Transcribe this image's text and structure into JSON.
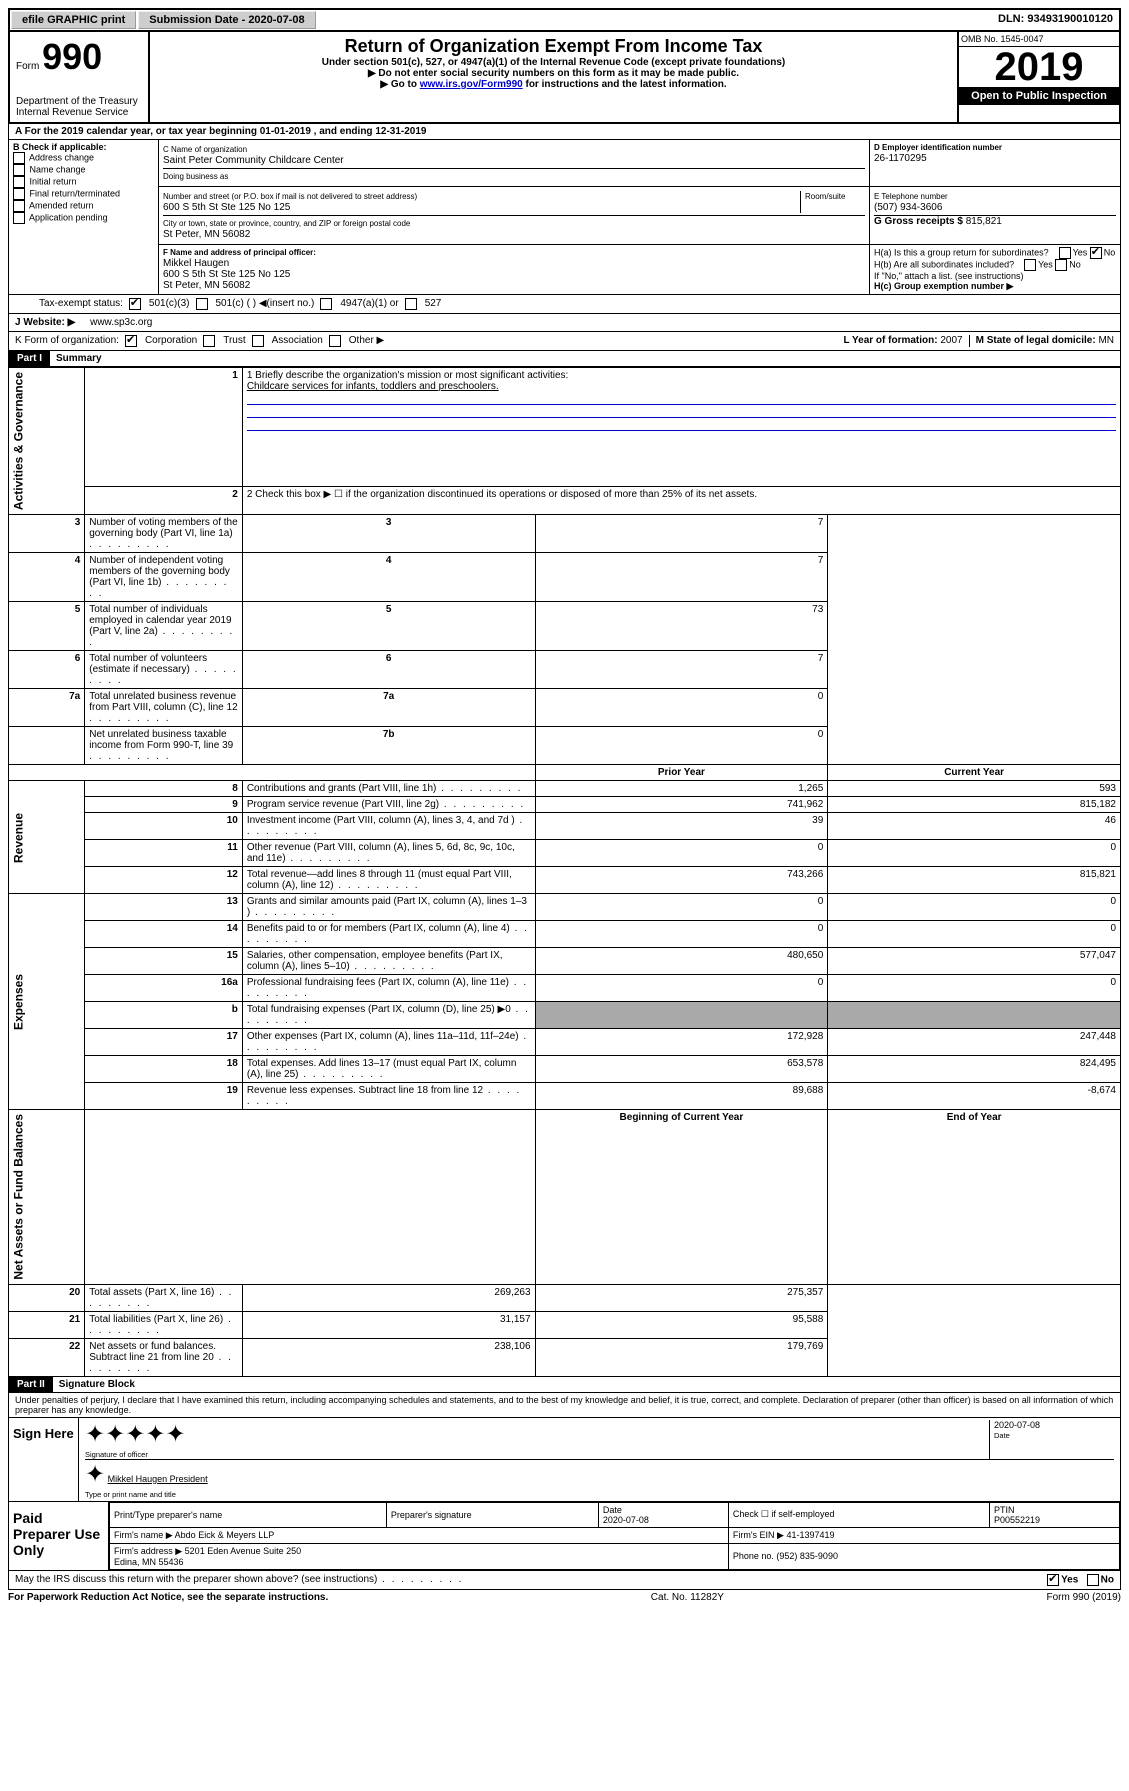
{
  "topbar": {
    "efile": "efile GRAPHIC print",
    "submission": "Submission Date - 2020-07-08",
    "dln": "DLN: 93493190010120"
  },
  "header": {
    "form_prefix": "Form",
    "form_number": "990",
    "dept": "Department of the Treasury\nInternal Revenue Service",
    "title": "Return of Organization Exempt From Income Tax",
    "subtitle": "Under section 501(c), 527, or 4947(a)(1) of the Internal Revenue Code (except private foundations)",
    "note1": "▶ Do not enter social security numbers on this form as it may be made public.",
    "note2_pre": "▶ Go to ",
    "note2_link": "www.irs.gov/Form990",
    "note2_post": " for instructions and the latest information.",
    "omb": "OMB No. 1545-0047",
    "year": "2019",
    "open": "Open to Public Inspection"
  },
  "rowA": "A For the 2019 calendar year, or tax year beginning 01-01-2019  , and ending 12-31-2019",
  "sectionB": {
    "label": "B Check if applicable:",
    "items": [
      "Address change",
      "Name change",
      "Initial return",
      "Final return/terminated",
      "Amended return",
      "Application pending"
    ]
  },
  "sectionC": {
    "name_lbl": "C Name of organization",
    "name": "Saint Peter Community Childcare Center",
    "dba_lbl": "Doing business as",
    "addr_lbl": "Number and street (or P.O. box if mail is not delivered to street address)",
    "room_lbl": "Room/suite",
    "addr": "600 S 5th St Ste 125 No 125",
    "city_lbl": "City or town, state or province, country, and ZIP or foreign postal code",
    "city": "St Peter, MN  56082"
  },
  "sectionD": {
    "ein_lbl": "D Employer identification number",
    "ein": "26-1170295",
    "tel_lbl": "E Telephone number",
    "tel": "(507) 934-3606",
    "gross_lbl": "G Gross receipts $",
    "gross": "815,821"
  },
  "sectionF": {
    "lbl": "F  Name and address of principal officer:",
    "name": "Mikkel Haugen",
    "addr1": "600 S 5th St Ste 125 No 125",
    "addr2": "St Peter, MN  56082"
  },
  "sectionH": {
    "a": "H(a)  Is this a group return for subordinates?",
    "b": "H(b)  Are all subordinates included?",
    "b_note": "If \"No,\" attach a list. (see instructions)",
    "c": "H(c)  Group exemption number ▶"
  },
  "tax": {
    "lbl": "Tax-exempt status:",
    "o1": "501(c)(3)",
    "o2": "501(c) (  ) ◀(insert no.)",
    "o3": "4947(a)(1) or",
    "o4": "527"
  },
  "rowJ": {
    "lbl": "J  Website: ▶",
    "val": "www.sp3c.org"
  },
  "rowK": {
    "lbl": "K Form of organization:",
    "opts": [
      "Corporation",
      "Trust",
      "Association",
      "Other ▶"
    ],
    "L_lbl": "L Year of formation:",
    "L_val": "2007",
    "M_lbl": "M State of legal domicile:",
    "M_val": "MN"
  },
  "partI": {
    "hdr": "Part I",
    "title": "Summary",
    "l1_lbl": "1  Briefly describe the organization's mission or most significant activities:",
    "l1_val": "Childcare services for infants, toddlers and preschoolers.",
    "l2": "2    Check this box ▶ ☐  if the organization discontinued its operations or disposed of more than 25% of its net assets.",
    "lines_single": [
      {
        "n": "3",
        "t": "Number of voting members of the governing body (Part VI, line 1a)",
        "ln": "3",
        "v": "7"
      },
      {
        "n": "4",
        "t": "Number of independent voting members of the governing body (Part VI, line 1b)",
        "ln": "4",
        "v": "7"
      },
      {
        "n": "5",
        "t": "Total number of individuals employed in calendar year 2019 (Part V, line 2a)",
        "ln": "5",
        "v": "73"
      },
      {
        "n": "6",
        "t": "Total number of volunteers (estimate if necessary)",
        "ln": "6",
        "v": "7"
      },
      {
        "n": "7a",
        "t": "Total unrelated business revenue from Part VIII, column (C), line 12",
        "ln": "7a",
        "v": "0"
      },
      {
        "n": "",
        "t": "Net unrelated business taxable income from Form 990-T, line 39",
        "ln": "7b",
        "v": "0"
      }
    ],
    "col_hdr": {
      "prior": "Prior Year",
      "current": "Current Year"
    },
    "revenue": [
      {
        "n": "8",
        "t": "Contributions and grants (Part VIII, line 1h)",
        "p": "1,265",
        "c": "593"
      },
      {
        "n": "9",
        "t": "Program service revenue (Part VIII, line 2g)",
        "p": "741,962",
        "c": "815,182"
      },
      {
        "n": "10",
        "t": "Investment income (Part VIII, column (A), lines 3, 4, and 7d )",
        "p": "39",
        "c": "46"
      },
      {
        "n": "11",
        "t": "Other revenue (Part VIII, column (A), lines 5, 6d, 8c, 9c, 10c, and 11e)",
        "p": "0",
        "c": "0"
      },
      {
        "n": "12",
        "t": "Total revenue—add lines 8 through 11 (must equal Part VIII, column (A), line 12)",
        "p": "743,266",
        "c": "815,821"
      }
    ],
    "expenses": [
      {
        "n": "13",
        "t": "Grants and similar amounts paid (Part IX, column (A), lines 1–3 )",
        "p": "0",
        "c": "0"
      },
      {
        "n": "14",
        "t": "Benefits paid to or for members (Part IX, column (A), line 4)",
        "p": "0",
        "c": "0"
      },
      {
        "n": "15",
        "t": "Salaries, other compensation, employee benefits (Part IX, column (A), lines 5–10)",
        "p": "480,650",
        "c": "577,047"
      },
      {
        "n": "16a",
        "t": "Professional fundraising fees (Part IX, column (A), line 11e)",
        "p": "0",
        "c": "0"
      },
      {
        "n": "b",
        "t": "Total fundraising expenses (Part IX, column (D), line 25) ▶0",
        "p": "",
        "c": "",
        "shade": true
      },
      {
        "n": "17",
        "t": "Other expenses (Part IX, column (A), lines 11a–11d, 11f–24e)",
        "p": "172,928",
        "c": "247,448"
      },
      {
        "n": "18",
        "t": "Total expenses. Add lines 13–17 (must equal Part IX, column (A), line 25)",
        "p": "653,578",
        "c": "824,495"
      },
      {
        "n": "19",
        "t": "Revenue less expenses. Subtract line 18 from line 12",
        "p": "89,688",
        "c": "-8,674"
      }
    ],
    "col_hdr2": {
      "prior": "Beginning of Current Year",
      "current": "End of Year"
    },
    "netassets": [
      {
        "n": "20",
        "t": "Total assets (Part X, line 16)",
        "p": "269,263",
        "c": "275,357"
      },
      {
        "n": "21",
        "t": "Total liabilities (Part X, line 26)",
        "p": "31,157",
        "c": "95,588"
      },
      {
        "n": "22",
        "t": "Net assets or fund balances. Subtract line 21 from line 20",
        "p": "238,106",
        "c": "179,769"
      }
    ],
    "side_labels": {
      "gov": "Activities & Governance",
      "rev": "Revenue",
      "exp": "Expenses",
      "net": "Net Assets or Fund Balances"
    }
  },
  "partII": {
    "hdr": "Part II",
    "title": "Signature Block",
    "perjury": "Under penalties of perjury, I declare that I have examined this return, including accompanying schedules and statements, and to the best of my knowledge and belief, it is true, correct, and complete. Declaration of preparer (other than officer) is based on all information of which preparer has any knowledge.",
    "sign_here": "Sign Here",
    "sig_officer": "Signature of officer",
    "date": "2020-07-08",
    "date_lbl": "Date",
    "name_title": "Mikkel Haugen  President",
    "name_title_lbl": "Type or print name and title",
    "paid": "Paid Preparer Use Only",
    "prep_name_lbl": "Print/Type preparer's name",
    "prep_sig_lbl": "Preparer's signature",
    "prep_date_lbl": "Date",
    "prep_date": "2020-07-08",
    "check_lbl": "Check ☐ if self-employed",
    "ptin_lbl": "PTIN",
    "ptin": "P00552219",
    "firm_name_lbl": "Firm's name   ▶",
    "firm_name": "Abdo Eick & Meyers LLP",
    "firm_ein_lbl": "Firm's EIN ▶",
    "firm_ein": "41-1397419",
    "firm_addr_lbl": "Firm's address ▶",
    "firm_addr": "5201 Eden Avenue Suite 250\nEdina, MN  55436",
    "phone_lbl": "Phone no.",
    "phone": "(952) 835-9090",
    "discuss": "May the IRS discuss this return with the preparer shown above? (see instructions)",
    "yes": "Yes",
    "no": "No"
  },
  "footer": {
    "left": "For Paperwork Reduction Act Notice, see the separate instructions.",
    "mid": "Cat. No. 11282Y",
    "right": "Form 990 (2019)"
  }
}
